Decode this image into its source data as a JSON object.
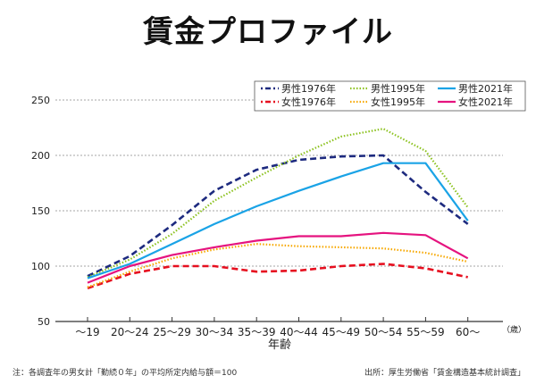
{
  "chart_data": {
    "type": "line",
    "title": "賃金プロファイル",
    "xlabel": "年齢",
    "xunit": "（歳）",
    "ylabel": "",
    "ylim": [
      50,
      250
    ],
    "yticks": [
      50,
      100,
      150,
      200,
      250
    ],
    "grid": true,
    "legend_position": "top-right",
    "categories": [
      "〜19",
      "20〜24",
      "25〜29",
      "30〜34",
      "35〜39",
      "40〜44",
      "45〜49",
      "50〜54",
      "55〜59",
      "60〜"
    ],
    "series": [
      {
        "name": "男性1976年",
        "style": "dashed",
        "color": "#1d2a7f",
        "values": [
          91,
          109,
          137,
          168,
          187,
          196,
          199,
          200,
          167,
          138
        ]
      },
      {
        "name": "男性1995年",
        "style": "dotted",
        "color": "#8cc21f",
        "values": [
          90,
          106,
          129,
          159,
          180,
          200,
          217,
          224,
          204,
          153
        ]
      },
      {
        "name": "男性2021年",
        "style": "solid",
        "color": "#1aa3e6",
        "values": [
          89,
          102,
          120,
          138,
          154,
          168,
          181,
          193,
          193,
          141
        ]
      },
      {
        "name": "女性1976年",
        "style": "dashed",
        "color": "#e60f1f",
        "values": [
          80,
          93,
          100,
          100,
          95,
          96,
          100,
          102,
          98,
          90
        ]
      },
      {
        "name": "女性1995年",
        "style": "dotted",
        "color": "#f7a800",
        "values": [
          81,
          95,
          107,
          115,
          120,
          118,
          117,
          116,
          112,
          104
        ]
      },
      {
        "name": "女性2021年",
        "style": "solid",
        "color": "#e5137f",
        "values": [
          85,
          100,
          110,
          117,
          123,
          127,
          127,
          130,
          128,
          107
        ]
      }
    ]
  },
  "footer": {
    "note": "注：各調査年の男女計「勤続０年」の平均所定内給与額＝100",
    "source": "出所：厚生労働省「賃金構造基本統計調査」"
  }
}
